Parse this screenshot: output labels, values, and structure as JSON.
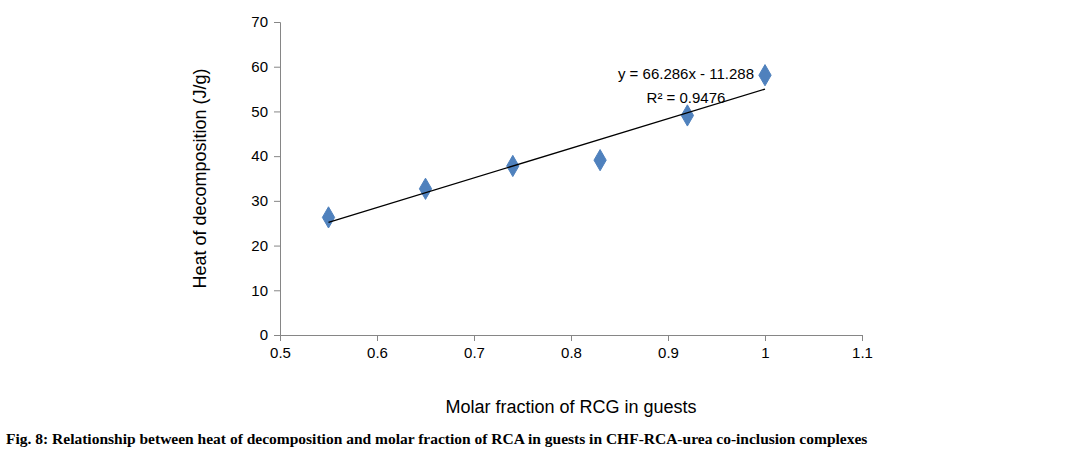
{
  "chart_data": {
    "type": "scatter",
    "title": "Fig. 8: Relationship between heat of decomposition and molar fraction of RCA in guests in CHF-RCA-urea co-inclusion complexes",
    "x_label": "Molar fraction of RCG in guests",
    "y_label": "Heat of decomposition (J/g)",
    "annotations": [
      "y = 66.286x - 11.288",
      "R² = 0.9476"
    ],
    "xlim": [
      0.5,
      1.1
    ],
    "xticks": [
      0.5,
      0.6,
      0.7,
      0.8,
      0.9,
      1,
      1.1
    ],
    "ylim": [
      0,
      70
    ],
    "yticks": [
      0,
      10,
      20,
      30,
      40,
      50,
      60,
      70
    ],
    "grid": false,
    "series": [
      {
        "type": "scatter",
        "marker": "diamond",
        "color": "#4f81bd",
        "x": [
          0.55,
          0.65,
          0.74,
          0.83,
          0.92,
          1.0
        ],
        "values": [
          26.3,
          32.7,
          37.8,
          39.1,
          49.1,
          58.1
        ]
      },
      {
        "type": "line",
        "line_style": "solid",
        "color": "#000000",
        "x": [
          0.55,
          1.0
        ],
        "values": [
          25.2,
          55.0
        ]
      }
    ]
  }
}
